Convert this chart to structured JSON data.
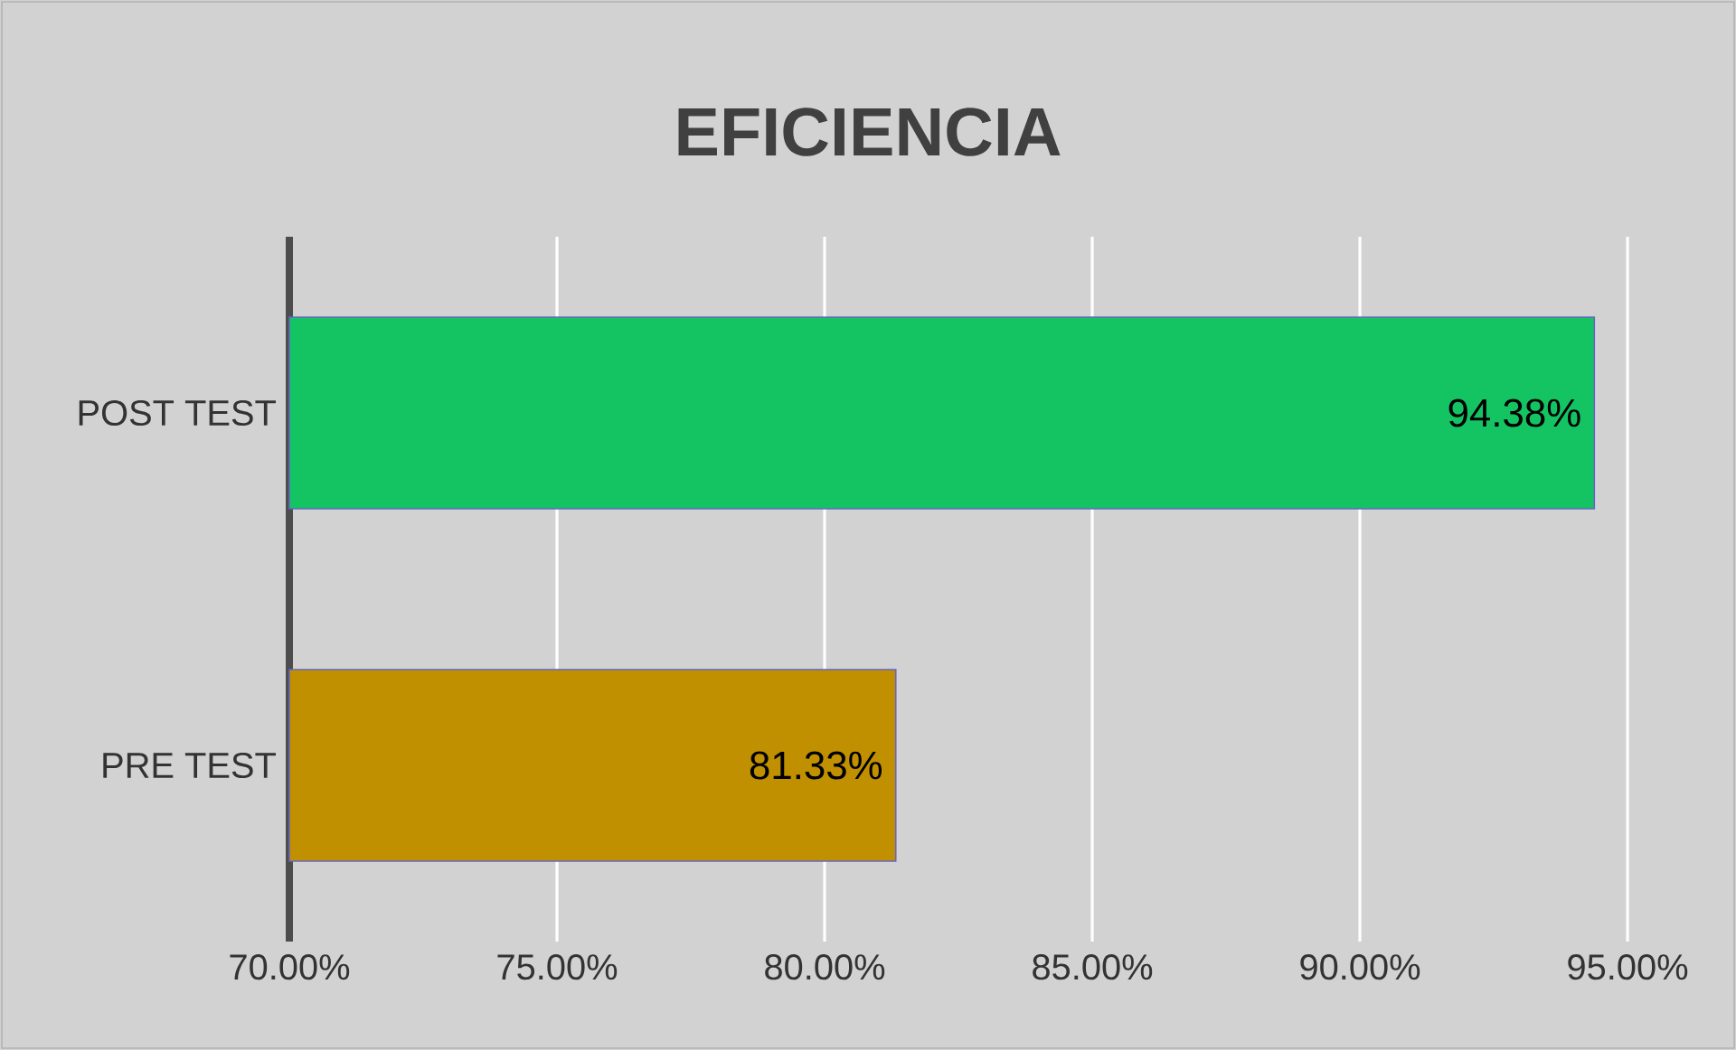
{
  "chart_data": {
    "type": "bar",
    "orientation": "horizontal",
    "title": "EFICIENCIA",
    "categories": [
      "POST TEST",
      "PRE TEST"
    ],
    "values": [
      94.38,
      81.33
    ],
    "colors": [
      "#14c462",
      "#c09000"
    ],
    "value_labels": [
      "94.38%",
      "81.33%"
    ],
    "xlim": [
      70,
      95
    ],
    "xticks": [
      {
        "value": 70,
        "label": "70.00%"
      },
      {
        "value": 75,
        "label": "75.00%"
      },
      {
        "value": 80,
        "label": "80.00%"
      },
      {
        "value": 85,
        "label": "85.00%"
      },
      {
        "value": 90,
        "label": "90.00%"
      },
      {
        "value": 95,
        "label": "95.00%"
      }
    ],
    "grid": "x"
  }
}
